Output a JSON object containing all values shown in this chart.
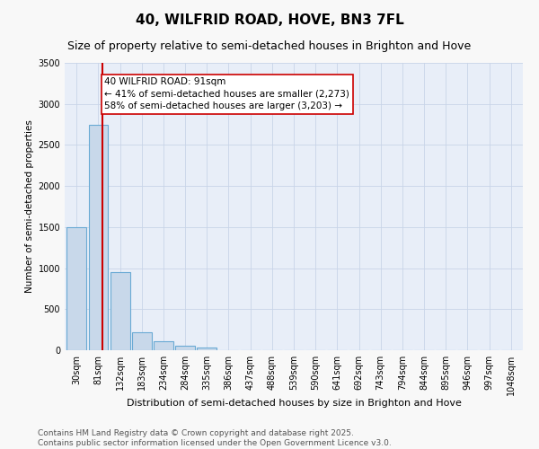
{
  "title": "40, WILFRID ROAD, HOVE, BN3 7FL",
  "subtitle": "Size of property relative to semi-detached houses in Brighton and Hove",
  "xlabel": "Distribution of semi-detached houses by size in Brighton and Hove",
  "ylabel": "Number of semi-detached properties",
  "bin_labels": [
    "30sqm",
    "81sqm",
    "132sqm",
    "183sqm",
    "234sqm",
    "284sqm",
    "335sqm",
    "386sqm",
    "437sqm",
    "488sqm",
    "539sqm",
    "590sqm",
    "641sqm",
    "692sqm",
    "743sqm",
    "794sqm",
    "844sqm",
    "895sqm",
    "946sqm",
    "997sqm",
    "1048sqm"
  ],
  "bar_heights": [
    1500,
    2750,
    950,
    220,
    110,
    60,
    30,
    2,
    0,
    0,
    0,
    0,
    0,
    0,
    0,
    0,
    0,
    0,
    0,
    0,
    0
  ],
  "bar_color": "#c8d8ea",
  "bar_edge_color": "#6aaad4",
  "bar_edge_width": 0.8,
  "property_line_color": "#cc0000",
  "property_line_x": 1.19,
  "annotation_text": "40 WILFRID ROAD: 91sqm\n← 41% of semi-detached houses are smaller (2,273)\n58% of semi-detached houses are larger (3,203) →",
  "annotation_box_color": "#ffffff",
  "annotation_box_edge_color": "#cc0000",
  "annotation_fontsize": 7.5,
  "ylim": [
    0,
    3500
  ],
  "yticks": [
    0,
    500,
    1000,
    1500,
    2000,
    2500,
    3000,
    3500
  ],
  "grid_color": "#c8d4e8",
  "background_color": "#e8eef8",
  "fig_background_color": "#f8f8f8",
  "footer_line1": "Contains HM Land Registry data © Crown copyright and database right 2025.",
  "footer_line2": "Contains public sector information licensed under the Open Government Licence v3.0.",
  "footer_fontsize": 6.5,
  "title_fontsize": 11,
  "subtitle_fontsize": 9,
  "xlabel_fontsize": 8,
  "ylabel_fontsize": 7.5,
  "tick_fontsize": 7
}
